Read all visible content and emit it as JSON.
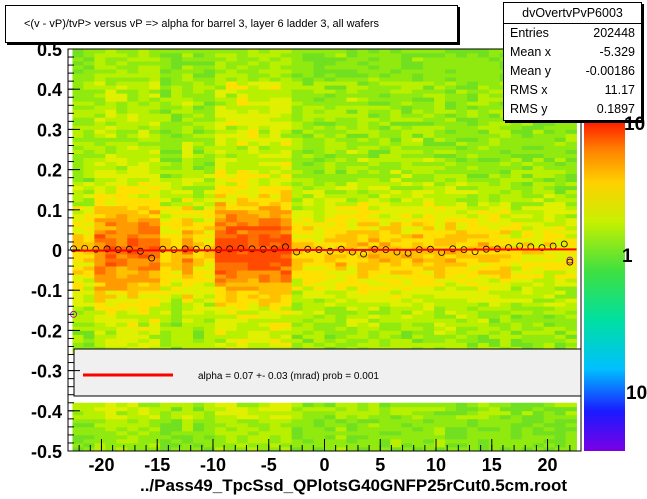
{
  "title": "<(v - vP)/tvP> versus   vP => alpha for barrel 3, layer 6 ladder 3, all wafers",
  "x_axis_title": "../Pass49_TpcSsd_QPlotsG40GNFP25rCut0.5cm.root",
  "stats": {
    "name": "dvOvertvPvP6003",
    "rows": [
      {
        "key": "Entries",
        "value": "202448"
      },
      {
        "key": "Mean x",
        "value": "-5.329"
      },
      {
        "key": "Mean y",
        "value": "-0.00186"
      },
      {
        "key": "RMS x",
        "value": "11.17"
      },
      {
        "key": "RMS y",
        "value": "0.1897"
      }
    ]
  },
  "legend": {
    "text": "alpha =    0.07 +-  0.03 (mrad) prob = 0.001",
    "line_color": "#ff0000"
  },
  "z_axis_labels": [
    "10",
    "1",
    "10"
  ],
  "chart_data": {
    "type": "heatmap",
    "title": "<(v - vP)/tvP> versus   vP => alpha for barrel 3, layer 6 ladder 3, all wafers",
    "xlabel": "",
    "ylabel": "",
    "xlim": [
      -23,
      23
    ],
    "ylim": [
      -0.5,
      0.5
    ],
    "x_ticks": [
      -20,
      -15,
      -10,
      -5,
      0,
      5,
      10,
      15,
      20
    ],
    "x_tick_labels": [
      "-20",
      "-15",
      "-10",
      "-5",
      "0",
      "5",
      "10",
      "15",
      "20"
    ],
    "y_ticks": [
      -0.5,
      -0.4,
      -0.3,
      -0.2,
      -0.1,
      0,
      0.1,
      0.2,
      0.3,
      0.4,
      0.5
    ],
    "y_tick_labels": [
      "-0.5",
      "-0.4",
      "-0.3",
      "-0.2",
      "-0.1",
      "0",
      "0.1",
      "0.2",
      "0.3",
      "0.4",
      "0.5"
    ],
    "z_scale": "log",
    "fit_line": {
      "slope_mrad": 0.07,
      "error_mrad": 0.03,
      "color": "#ff0000"
    },
    "profile_points": {
      "x": [
        -22.5,
        -21.5,
        -20.5,
        -19.5,
        -18.5,
        -17.5,
        -16.5,
        -15.5,
        -14.5,
        -13.5,
        -12.5,
        -11.5,
        -10.5,
        -9.5,
        -8.5,
        -7.5,
        -6.5,
        -5.5,
        -4.5,
        -3.5,
        -2.5,
        -1.5,
        -0.5,
        0.5,
        1.5,
        2.5,
        3.5,
        4.5,
        5.5,
        6.5,
        7.5,
        8.5,
        9.5,
        10.5,
        11.5,
        12.5,
        13.5,
        14.5,
        15.5,
        16.5,
        17.5,
        18.5,
        19.5,
        20.5,
        21.5,
        22.0
      ],
      "y": [
        0.003,
        0.004,
        0.002,
        0.003,
        0.001,
        0.002,
        -0.003,
        -0.02,
        0.002,
        0.001,
        0.003,
        0.002,
        0.004,
        0.001,
        0.003,
        0.004,
        0.003,
        0.002,
        0.003,
        0.008,
        -0.005,
        0.002,
        0.001,
        -0.003,
        0.002,
        -0.005,
        -0.01,
        0.002,
        0.001,
        -0.005,
        -0.008,
        0.001,
        0.002,
        -0.006,
        0.003,
        0.001,
        -0.004,
        0.002,
        0.003,
        0.006,
        0.01,
        0.008,
        0.006,
        0.01,
        0.015,
        -0.03
      ]
    },
    "outlier_points": {
      "x": [
        -22.5,
        22.0
      ],
      "y": [
        -0.16,
        -0.025
      ]
    }
  }
}
